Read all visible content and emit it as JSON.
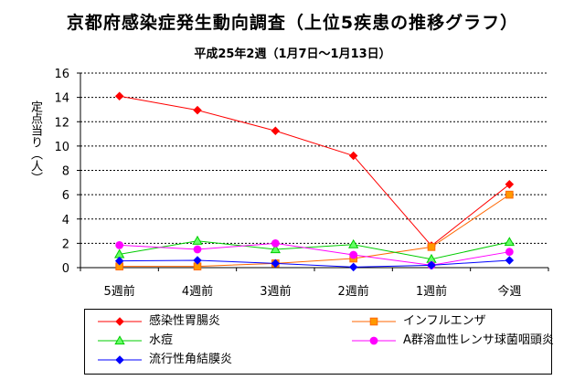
{
  "chart_data": {
    "type": "line",
    "title": "京都府感染症発生動向調査（上位5疾患の推移グラフ）",
    "subtitle": "平成25年2週（1月7日～1月13日）",
    "ylabel": "定点当り（人）",
    "categories": [
      "5週前",
      "4週前",
      "3週前",
      "2週前",
      "1週前",
      "今週"
    ],
    "ylim": [
      0,
      16
    ],
    "yticks": [
      0,
      2,
      4,
      6,
      8,
      10,
      12,
      14,
      16
    ],
    "grid": true,
    "legend_position": "bottom",
    "series": [
      {
        "name": "感染性胃腸炎",
        "color": "#ff0000",
        "marker": "diamond",
        "values": [
          14.1,
          12.95,
          11.25,
          9.2,
          1.8,
          6.85
        ]
      },
      {
        "name": "インフルエンザ",
        "color": "#ff6600",
        "marker": "square",
        "values": [
          0.1,
          0.1,
          0.35,
          0.75,
          1.7,
          6.0
        ]
      },
      {
        "name": "水痘",
        "color": "#00cc00",
        "marker": "triangle",
        "values": [
          1.1,
          2.2,
          1.5,
          1.9,
          0.7,
          2.1
        ]
      },
      {
        "name": "A群溶血性レンサ球菌咽頭炎",
        "color": "#ff00ff",
        "marker": "circle",
        "values": [
          1.85,
          1.5,
          2.0,
          1.05,
          0.2,
          1.3
        ]
      },
      {
        "name": "流行性角結膜炎",
        "color": "#0000ff",
        "marker": "diamond",
        "values": [
          0.55,
          0.6,
          0.35,
          0.05,
          0.2,
          0.6
        ]
      }
    ]
  }
}
